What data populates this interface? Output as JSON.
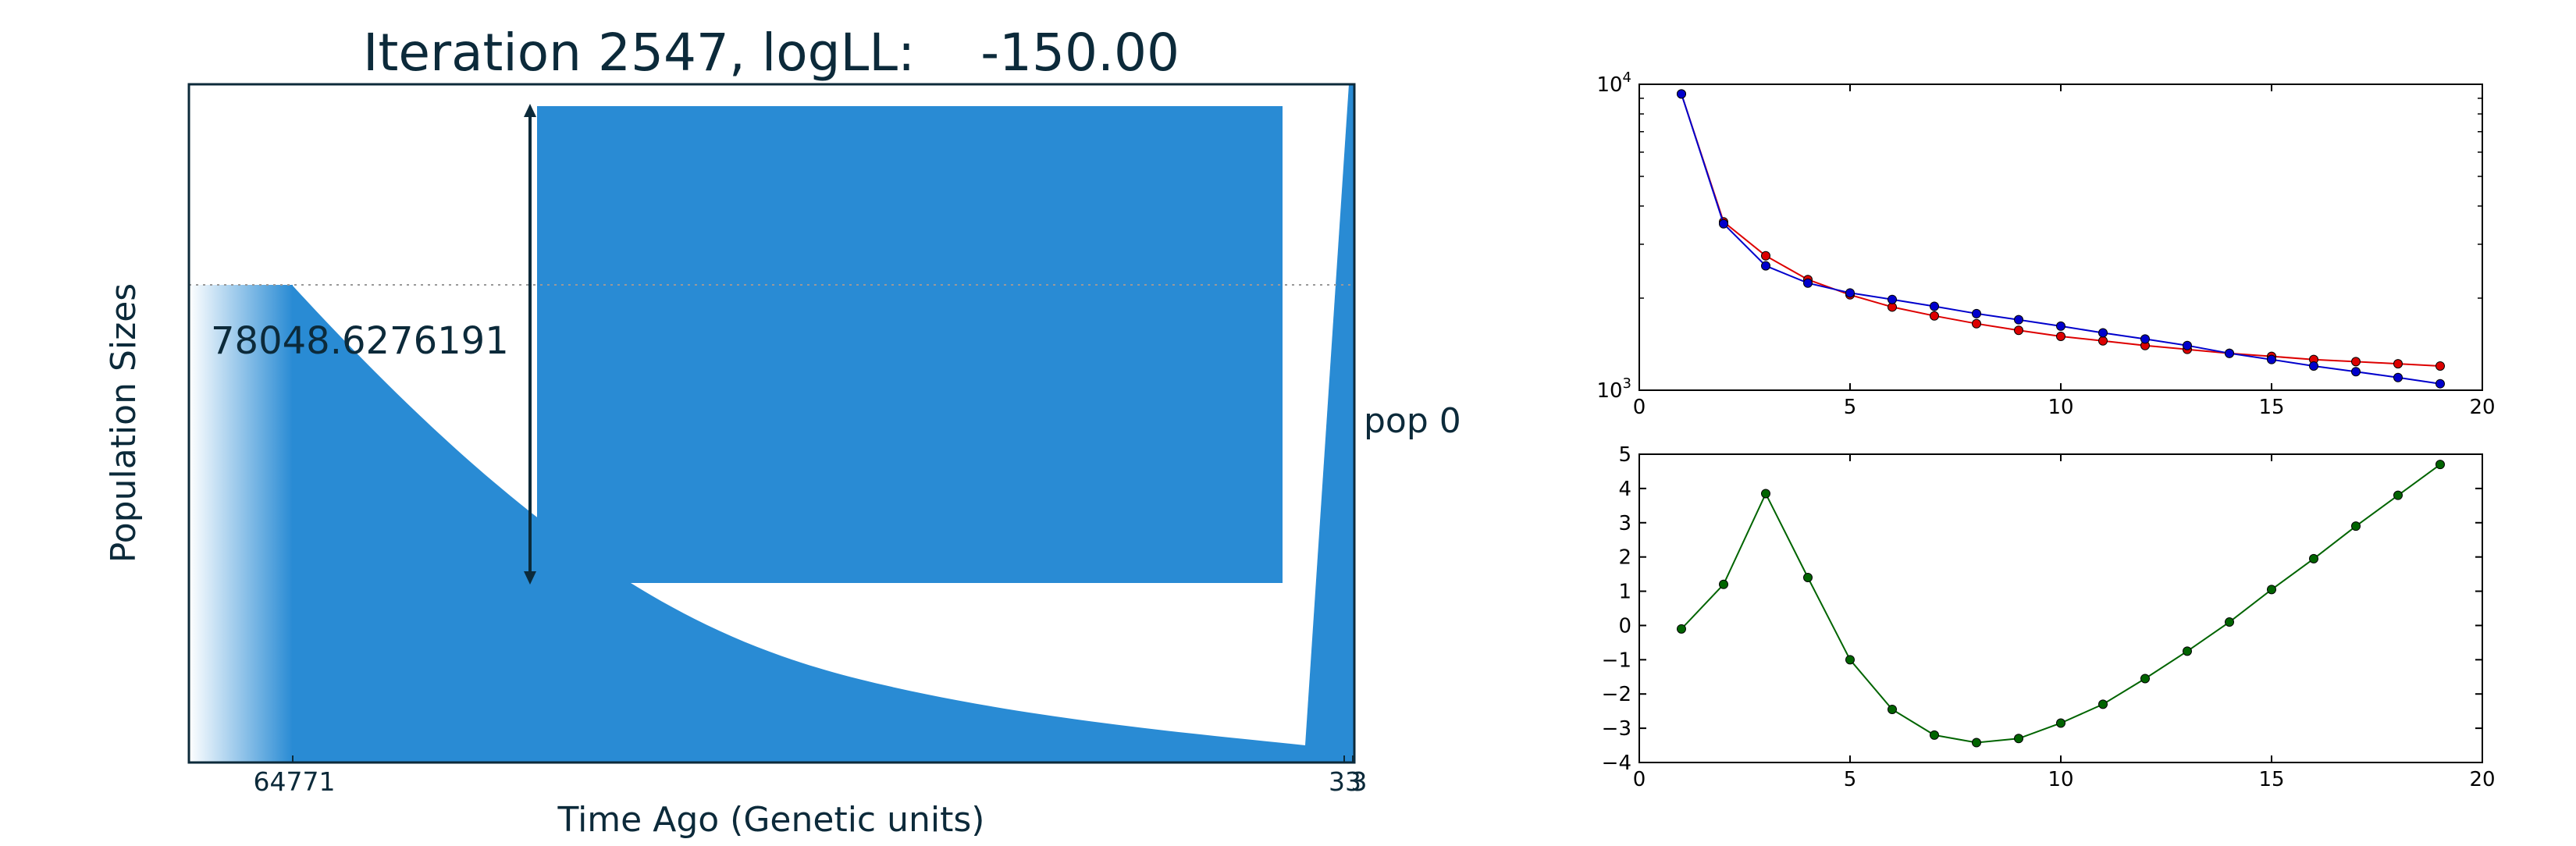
{
  "colors": {
    "demography_fill": "#298bd4",
    "text": "#0c2a3a",
    "red_series": "#dd0000",
    "blue_series": "#0000cc",
    "green_series": "#006400",
    "axis": "#000000",
    "reference_line": "#999999"
  },
  "chart_data": [
    {
      "type": "area",
      "title": "Iteration 2547, logLL:    -150.00",
      "xlabel": "Time Ago (Genetic units)",
      "ylabel": "Population Sizes",
      "x_tick_labels": [
        "64771",
        "33",
        "3"
      ],
      "size_annotation": "78048.6276191",
      "population_label": "pop 0",
      "reference_line": "dotted"
    },
    {
      "type": "line",
      "title": "",
      "xlabel": "",
      "ylabel": "",
      "x": [
        1,
        2,
        3,
        4,
        5,
        6,
        7,
        8,
        9,
        10,
        11,
        12,
        13,
        14,
        15,
        16,
        17,
        18,
        19
      ],
      "xlim": [
        0,
        20
      ],
      "x_ticks": [
        0,
        5,
        10,
        15,
        20
      ],
      "yscale": "log",
      "ylim": [
        1000,
        10000
      ],
      "y_tick_labels": [
        {
          "base": "10",
          "exp": "3",
          "value": 1000
        },
        {
          "base": "10",
          "exp": "4",
          "value": 10000
        }
      ],
      "grid": false,
      "series": [
        {
          "color_key": "red_series",
          "values": [
            9300,
            3550,
            2750,
            2300,
            2050,
            1870,
            1750,
            1650,
            1570,
            1500,
            1450,
            1400,
            1360,
            1320,
            1290,
            1260,
            1240,
            1220,
            1200
          ]
        },
        {
          "color_key": "blue_series",
          "values": [
            9300,
            3500,
            2550,
            2240,
            2080,
            1980,
            1880,
            1780,
            1700,
            1620,
            1540,
            1470,
            1400,
            1320,
            1260,
            1200,
            1150,
            1100,
            1050
          ]
        }
      ]
    },
    {
      "type": "line",
      "title": "",
      "xlabel": "",
      "ylabel": "",
      "x": [
        1,
        2,
        3,
        4,
        5,
        6,
        7,
        8,
        9,
        10,
        11,
        12,
        13,
        14,
        15,
        16,
        17,
        18,
        19
      ],
      "xlim": [
        0,
        20
      ],
      "x_ticks": [
        0,
        5,
        10,
        15,
        20
      ],
      "ylim": [
        -4,
        5
      ],
      "y_ticks": [
        -4,
        -3,
        -2,
        -1,
        0,
        1,
        2,
        3,
        4,
        5
      ],
      "grid": false,
      "series": [
        {
          "color_key": "green_series",
          "values": [
            -0.1,
            1.2,
            3.85,
            1.4,
            -1.0,
            -2.45,
            -3.2,
            -3.42,
            -3.3,
            -2.85,
            -2.3,
            -1.55,
            -0.75,
            0.1,
            1.05,
            1.95,
            2.9,
            3.8,
            4.7
          ]
        }
      ]
    }
  ]
}
